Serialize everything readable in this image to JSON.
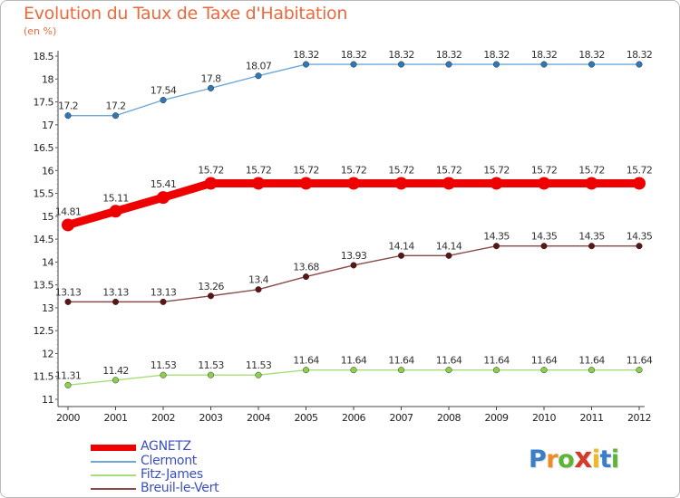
{
  "page": {
    "title": "Evolution du Taux de Taxe d'Habitation",
    "unit_label": "(en %)"
  },
  "chart_data": {
    "type": "line",
    "title": "Evolution du Taux de Taxe d'Habitation",
    "ylabel": "(en %)",
    "xlabel": "",
    "x": [
      "2000",
      "2001",
      "2002",
      "2003",
      "2004",
      "2005",
      "2006",
      "2007",
      "2008",
      "2009",
      "2010",
      "2011",
      "2012"
    ],
    "ylim": [
      11,
      18.5
    ],
    "yticks": [
      11,
      11.5,
      12,
      12.5,
      13,
      13.5,
      14,
      14.5,
      15,
      15.5,
      16,
      16.5,
      17,
      17.5,
      18,
      18.5
    ],
    "ytick_labels": [
      "11",
      "11.5",
      "12",
      "12.5",
      "13",
      "13.5",
      "14",
      "14.5",
      "15",
      "15.5",
      "16",
      "16.5",
      "17",
      "17.5",
      "18",
      "18.5"
    ],
    "grid": false,
    "legend_position": "bottom-left",
    "series": [
      {
        "name": "AGNETZ",
        "color": "#ee0000",
        "emphasis": true,
        "values": [
          14.81,
          15.11,
          15.41,
          15.72,
          15.72,
          15.72,
          15.72,
          15.72,
          15.72,
          15.72,
          15.72,
          15.72,
          15.72
        ],
        "labels": [
          "14.81",
          "15.11",
          "15.41",
          "15.72",
          "15.72",
          "15.72",
          "15.72",
          "15.72",
          "15.72",
          "15.72",
          "15.72",
          "15.72",
          "15.72"
        ]
      },
      {
        "name": "Clermont",
        "color": "#6fa8d8",
        "marker_color": "#2e78b8",
        "values": [
          17.2,
          17.2,
          17.54,
          17.8,
          18.07,
          18.32,
          18.32,
          18.32,
          18.32,
          18.32,
          18.32,
          18.32,
          18.32
        ],
        "labels": [
          "17.2",
          "17.2",
          "17.54",
          "17.8",
          "18.07",
          "18.32",
          "18.32",
          "18.32",
          "18.32",
          "18.32",
          "18.32",
          "18.32",
          "18.32"
        ]
      },
      {
        "name": "Fitz-James",
        "color": "#a6de7a",
        "marker_color": "#8ccf4a",
        "values": [
          11.31,
          11.42,
          11.53,
          11.53,
          11.53,
          11.64,
          11.64,
          11.64,
          11.64,
          11.64,
          11.64,
          11.64,
          11.64
        ],
        "labels": [
          "11.31",
          "11.42",
          "11.53",
          "11.53",
          "11.53",
          "11.64",
          "11.64",
          "11.64",
          "11.64",
          "11.64",
          "11.64",
          "11.64",
          "11.64"
        ]
      },
      {
        "name": "Breuil-le-Vert",
        "color": "#8b4a4a",
        "marker_color": "#5c1515",
        "values": [
          13.13,
          13.13,
          13.13,
          13.26,
          13.4,
          13.68,
          13.93,
          14.14,
          14.14,
          14.35,
          14.35,
          14.35,
          14.35
        ],
        "labels": [
          "13.13",
          "13.13",
          "13.13",
          "13.26",
          "13.4",
          "13.68",
          "13.93",
          "14.14",
          "14.14",
          "14.35",
          "14.35",
          "14.35",
          "14.35"
        ]
      }
    ]
  },
  "logo": {
    "letters": [
      "P",
      "r",
      "o",
      "x",
      "i",
      "t",
      "i"
    ],
    "colors": [
      "#3a7ec8",
      "#f08a24",
      "#5cb534",
      "#d43a2a",
      "#f0b81c",
      "#3a7ec8",
      "#5cb534"
    ]
  }
}
